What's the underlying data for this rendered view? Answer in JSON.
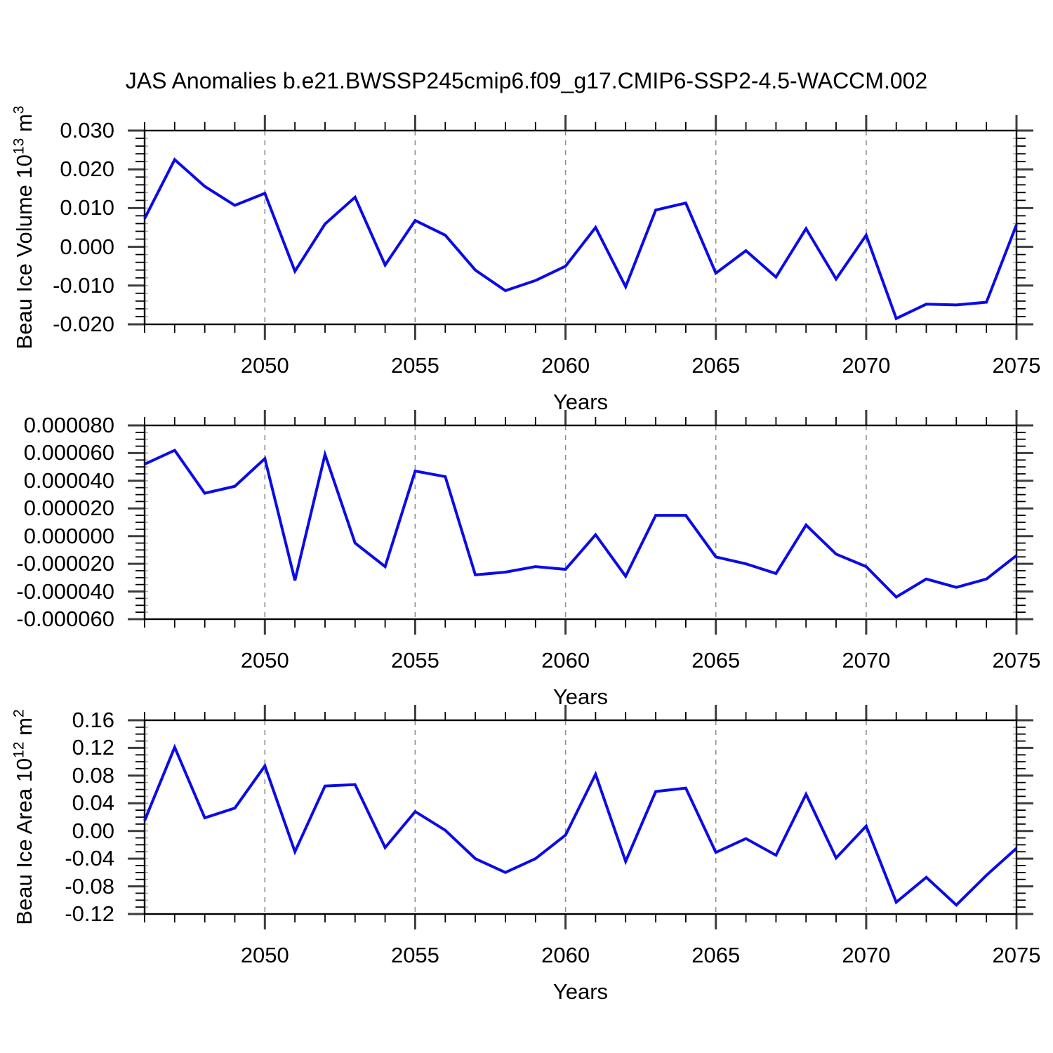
{
  "title": "JAS Anomalies b.e21.BWSSP245cmip6.f09_g17.CMIP6-SSP2-4.5-WACCM.002",
  "colors": {
    "line": "#0b0be6",
    "grid": "#8f8f8f",
    "axis": "#000000",
    "major_tick": "#3d3d3d",
    "background": "#ffffff"
  },
  "chart_data": [
    {
      "type": "line",
      "ylabel": "Beau Ice Volume 10^13 m^3",
      "ylabel_parts": {
        "base": "Beau Ice Volume 10",
        "sup1": "13",
        "mid": " m",
        "sup2": "3"
      },
      "xlabel": "Years",
      "legend": "none",
      "grid": "vertical-dashed",
      "xlim": [
        2046,
        2075
      ],
      "ylim": [
        -0.02,
        0.03
      ],
      "ytick_values": [
        0.03,
        0.02,
        0.01,
        0.0,
        -0.01,
        -0.02
      ],
      "ytick_labels": [
        "0.030",
        "0.020",
        "0.010",
        "0.000",
        "-0.010",
        "-0.020"
      ],
      "y_minor_step": 0.002,
      "xtick_values": [
        2050,
        2055,
        2060,
        2065,
        2070,
        2075
      ],
      "xtick_labels": [
        "2050",
        "2055",
        "2060",
        "2065",
        "2070",
        "2075"
      ],
      "grid_years": [
        2050,
        2055,
        2060,
        2065,
        2070
      ],
      "years": [
        2046,
        2047,
        2048,
        2049,
        2050,
        2051,
        2052,
        2053,
        2054,
        2055,
        2056,
        2057,
        2058,
        2059,
        2060,
        2061,
        2062,
        2063,
        2064,
        2065,
        2066,
        2067,
        2068,
        2069,
        2070,
        2071,
        2072,
        2073,
        2074,
        2075
      ],
      "values": [
        0.0073,
        0.0225,
        0.0156,
        0.0107,
        0.0138,
        -0.0063,
        0.0059,
        0.0128,
        -0.0047,
        0.0068,
        0.003,
        -0.006,
        -0.0113,
        -0.0087,
        -0.005,
        0.005,
        -0.0103,
        0.0095,
        0.0113,
        -0.0068,
        -0.001,
        -0.0078,
        0.0047,
        -0.0083,
        0.003,
        -0.0185,
        -0.0148,
        -0.015,
        -0.0143,
        0.0057
      ]
    },
    {
      "type": "line",
      "ylabel": "",
      "ylabel_parts": null,
      "xlabel": "Years",
      "legend": "none",
      "grid": "vertical-dashed",
      "xlim": [
        2046,
        2075
      ],
      "ylim": [
        -6e-05,
        8e-05
      ],
      "ytick_values": [
        8e-05,
        6e-05,
        4e-05,
        2e-05,
        0.0,
        -2e-05,
        -4e-05,
        -6e-05
      ],
      "ytick_labels": [
        "0.000080",
        "0.000060",
        "0.000040",
        "0.000020",
        "0.000000",
        "-0.000020",
        "-0.000040",
        "-0.000060"
      ],
      "y_minor_step": 5e-06,
      "xtick_values": [
        2050,
        2055,
        2060,
        2065,
        2070,
        2075
      ],
      "xtick_labels": [
        "2050",
        "2055",
        "2060",
        "2065",
        "2070",
        "2075"
      ],
      "grid_years": [
        2050,
        2055,
        2060,
        2065,
        2070
      ],
      "years": [
        2046,
        2047,
        2048,
        2049,
        2050,
        2051,
        2052,
        2053,
        2054,
        2055,
        2056,
        2057,
        2058,
        2059,
        2060,
        2061,
        2062,
        2063,
        2064,
        2065,
        2066,
        2067,
        2068,
        2069,
        2070,
        2071,
        2072,
        2073,
        2074,
        2075
      ],
      "values": [
        5.2e-05,
        6.2e-05,
        3.1e-05,
        3.6e-05,
        5.6e-05,
        -3.2e-05,
        5.9e-05,
        -5e-06,
        -2.2e-05,
        4.7e-05,
        4.3e-05,
        -2.8e-05,
        -2.6e-05,
        -2.2e-05,
        -2.4e-05,
        1e-06,
        -2.9e-05,
        1.5e-05,
        1.5e-05,
        -1.5e-05,
        -2e-05,
        -2.7e-05,
        8e-06,
        -1.3e-05,
        -2.2e-05,
        -4.4e-05,
        -3.1e-05,
        -3.7e-05,
        -3.1e-05,
        -1.4e-05
      ]
    },
    {
      "type": "line",
      "ylabel": "Beau Ice Area 10^12 m^2",
      "ylabel_parts": {
        "base": "Beau Ice Area 10",
        "sup1": "12",
        "mid": " m",
        "sup2": "2"
      },
      "xlabel": "Years",
      "legend": "none",
      "grid": "vertical-dashed",
      "xlim": [
        2046,
        2075
      ],
      "ylim": [
        -0.12,
        0.16
      ],
      "ytick_values": [
        0.16,
        0.12,
        0.08,
        0.04,
        0.0,
        -0.04,
        -0.08,
        -0.12
      ],
      "ytick_labels": [
        "0.16",
        "0.12",
        "0.08",
        "0.04",
        "0.00",
        "-0.04",
        "-0.08",
        "-0.12"
      ],
      "y_minor_step": 0.01,
      "xtick_values": [
        2050,
        2055,
        2060,
        2065,
        2070,
        2075
      ],
      "xtick_labels": [
        "2050",
        "2055",
        "2060",
        "2065",
        "2070",
        "2075"
      ],
      "grid_years": [
        2050,
        2055,
        2060,
        2065,
        2070
      ],
      "years": [
        2046,
        2047,
        2048,
        2049,
        2050,
        2051,
        2052,
        2053,
        2054,
        2055,
        2056,
        2057,
        2058,
        2059,
        2060,
        2061,
        2062,
        2063,
        2064,
        2065,
        2066,
        2067,
        2068,
        2069,
        2070,
        2071,
        2072,
        2073,
        2074,
        2075
      ],
      "values": [
        0.015,
        0.121,
        0.019,
        0.033,
        0.094,
        -0.03,
        0.065,
        0.067,
        -0.024,
        0.028,
        0.001,
        -0.04,
        -0.06,
        -0.04,
        -0.006,
        0.082,
        -0.044,
        0.057,
        0.062,
        -0.031,
        -0.011,
        -0.035,
        0.053,
        -0.039,
        0.007,
        -0.103,
        -0.067,
        -0.107,
        -0.064,
        -0.025
      ]
    }
  ]
}
